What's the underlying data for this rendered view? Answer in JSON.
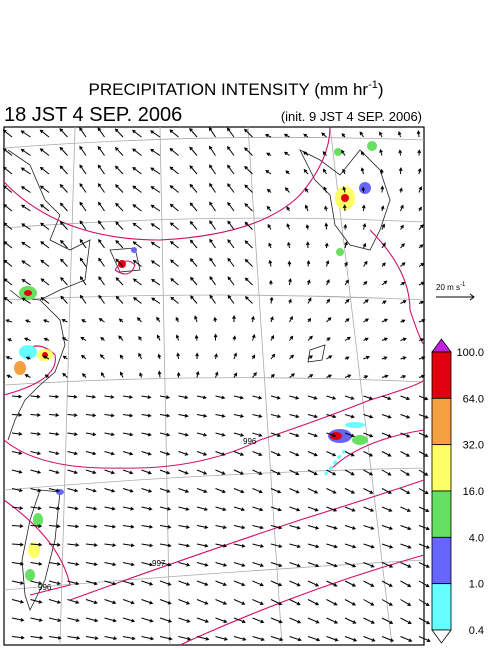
{
  "header": {
    "title": "PRECIPITATION INTENSITY (mm hr",
    "title_superscript": "-1",
    "title_suffix": ")",
    "valid_time": "18 JST 4 SEP. 2006",
    "init_time": "(init. 9 JST 4 SEP. 2006)"
  },
  "scale_arrow": {
    "label": "20 m s",
    "superscript": "-1"
  },
  "colorbar": {
    "labels": [
      "100.0",
      "64.0",
      "32.0",
      "16.0",
      "4.0",
      "1.0",
      "0.4"
    ],
    "colors": [
      "#c020e0",
      "#e00010",
      "#f4a040",
      "#ffff66",
      "#66e060",
      "#6666ff",
      "#66ffff",
      "#ffffff"
    ]
  },
  "contour_labels": [
    "996",
    "997",
    "996"
  ]
}
